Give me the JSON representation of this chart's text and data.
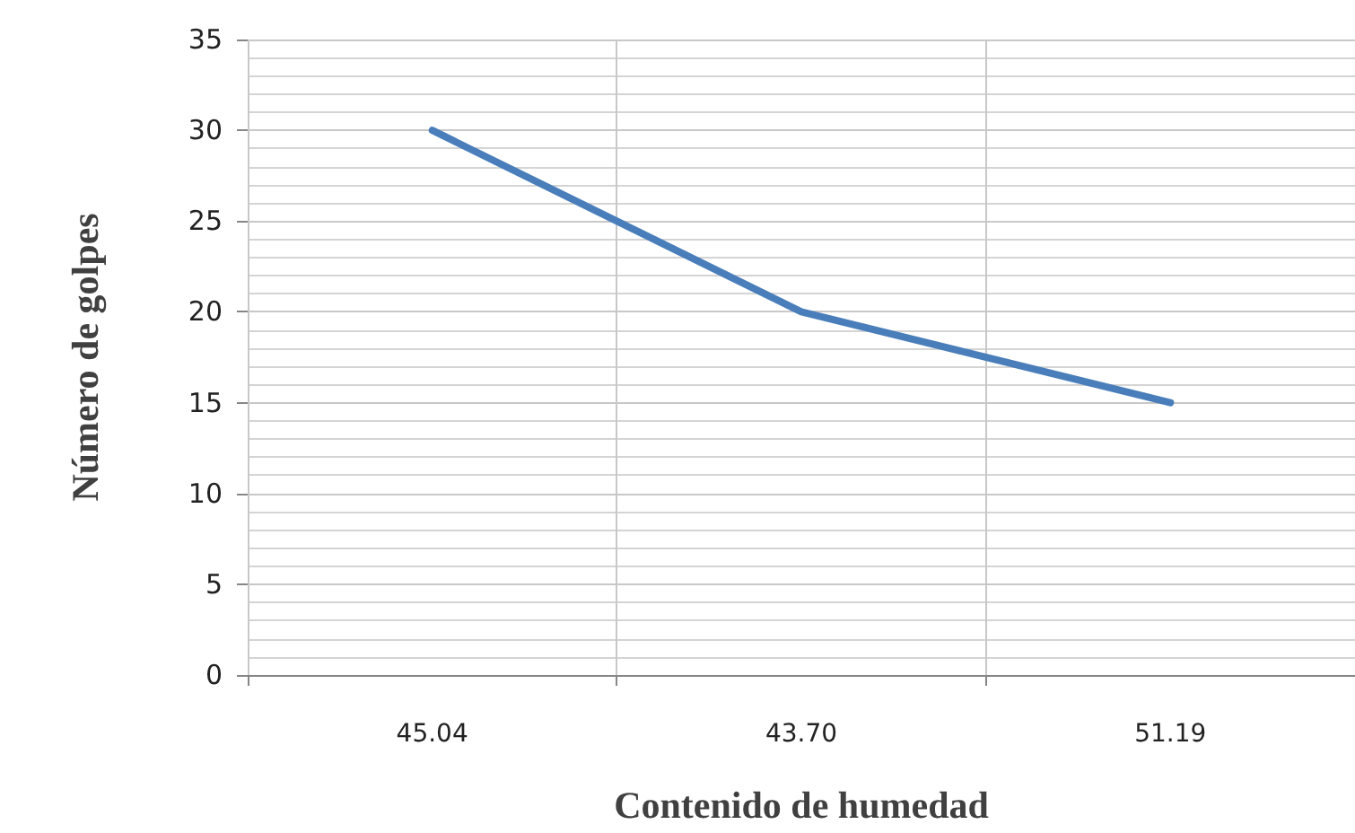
{
  "chart_data": {
    "type": "line",
    "xlabel": "Contenido de humedad",
    "ylabel": "Número de golpes",
    "categories": [
      "45.04",
      "43.70",
      "51.19"
    ],
    "series": [
      {
        "color": "#4a7ebb",
        "values": [
          30,
          20,
          15
        ]
      }
    ],
    "ylim": [
      0,
      35
    ],
    "yticks": [
      0,
      5,
      10,
      15,
      20,
      25,
      30,
      35
    ],
    "grid": true,
    "marker": "none",
    "line_style": "solid"
  }
}
